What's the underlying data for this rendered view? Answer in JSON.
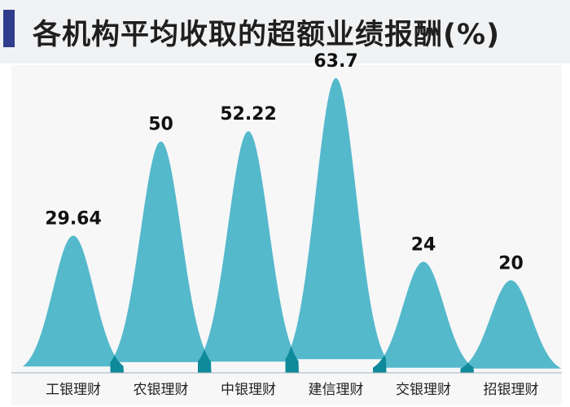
{
  "title": "各机构平均收取的超额业绩报酬(%)",
  "colors": {
    "accent": "#2f3d8c",
    "peak": "#55b9cc",
    "overlap": "#0e8a9a",
    "baseline": "#9fb3bd"
  },
  "chart_data": {
    "type": "area",
    "title": "各机构平均收取的超额业绩报酬(%)",
    "categories": [
      "工银理财",
      "农银理财",
      "中银理财",
      "建信理财",
      "交银理财",
      "招银理财"
    ],
    "values": [
      29.64,
      50,
      52.22,
      63.7,
      24,
      20
    ],
    "value_labels": [
      "29.64",
      "50",
      "52.22",
      "63.7",
      "24",
      "20"
    ],
    "unit": "%",
    "ylim": [
      0,
      70
    ],
    "grid": false,
    "legend": "none"
  }
}
